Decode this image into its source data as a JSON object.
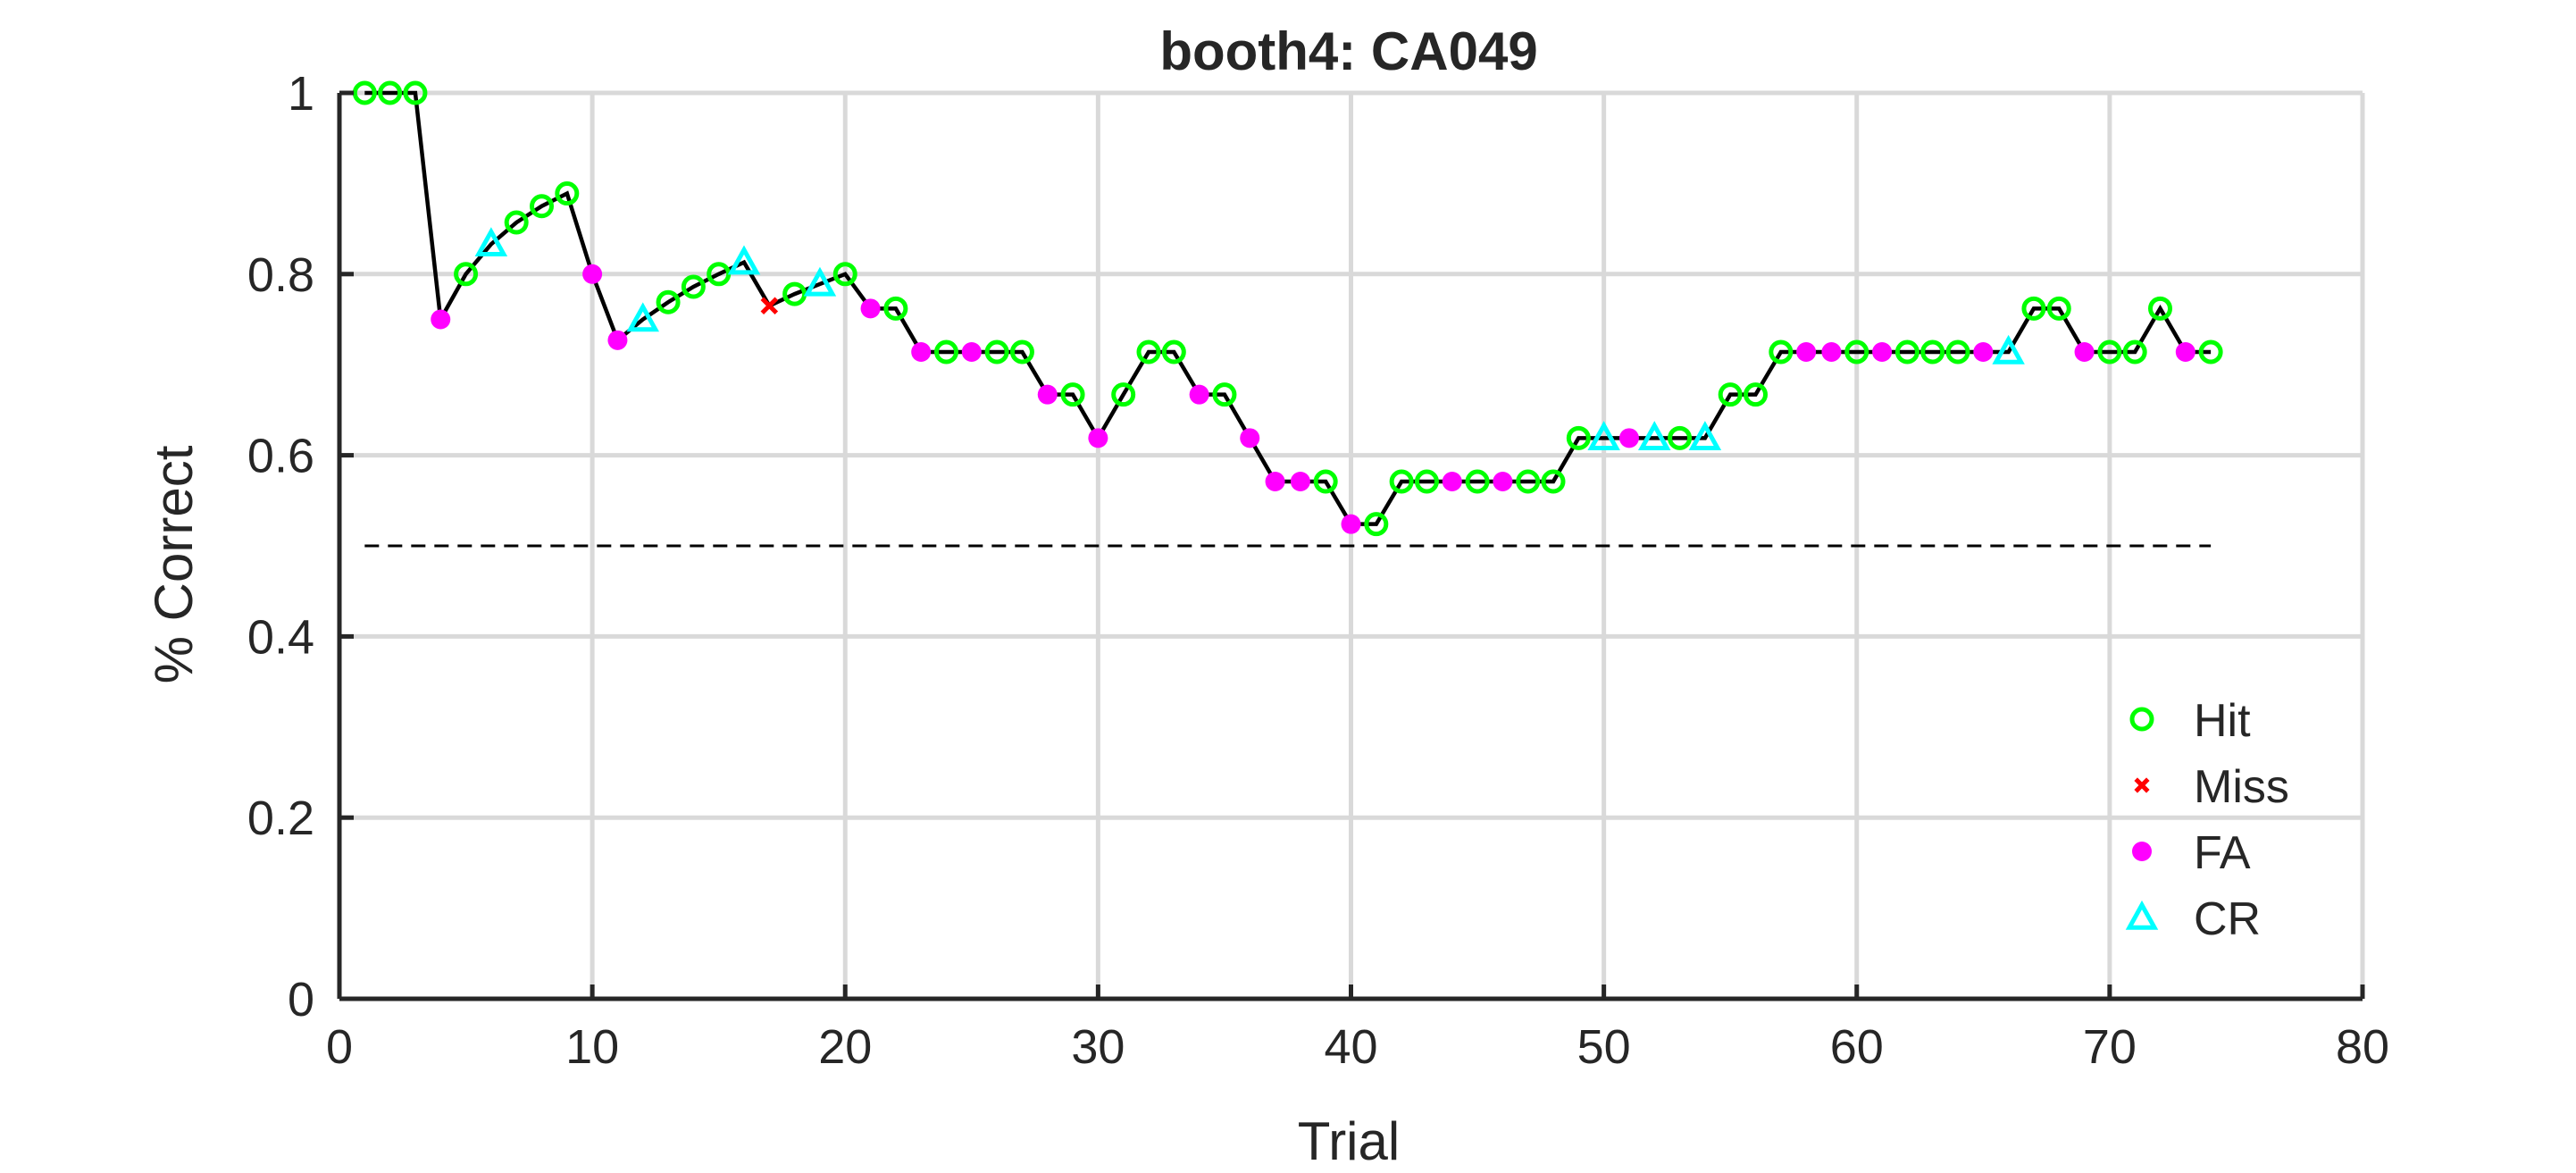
{
  "chart_data": {
    "type": "line",
    "title": "booth4: CA049",
    "xlabel": "Trial",
    "ylabel": "% Correct",
    "xlim": [
      0,
      80
    ],
    "ylim": [
      0,
      1
    ],
    "xticks": [
      0,
      10,
      20,
      30,
      40,
      50,
      60,
      70,
      80
    ],
    "yticks": [
      0,
      0.2,
      0.4,
      0.6,
      0.8,
      1
    ],
    "xtick_labels": [
      "0",
      "10",
      "20",
      "30",
      "40",
      "50",
      "60",
      "70",
      "80"
    ],
    "ytick_labels": [
      "0",
      "0.2",
      "0.4",
      "0.6",
      "0.8",
      "1"
    ],
    "grid": true,
    "legend_position": "bottom-right",
    "chance_line": {
      "y": 0.5,
      "x_range": [
        1,
        74
      ],
      "style": "dashed"
    },
    "legend": [
      {
        "key": "Hit",
        "label": "Hit",
        "color": "#00ff00",
        "marker": "circle-open"
      },
      {
        "key": "Miss",
        "label": "Miss",
        "color": "#ff0000",
        "marker": "x"
      },
      {
        "key": "FA",
        "label": "FA",
        "color": "#ff00ff",
        "marker": "dot"
      },
      {
        "key": "CR",
        "label": "CR",
        "color": "#00ffff",
        "marker": "triangle-open"
      }
    ],
    "x": [
      1,
      2,
      3,
      4,
      5,
      6,
      7,
      8,
      9,
      10,
      11,
      12,
      13,
      14,
      15,
      16,
      17,
      18,
      19,
      20,
      21,
      22,
      23,
      24,
      25,
      26,
      27,
      28,
      29,
      30,
      31,
      32,
      33,
      34,
      35,
      36,
      37,
      38,
      39,
      40,
      41,
      42,
      43,
      44,
      45,
      46,
      47,
      48,
      49,
      50,
      51,
      52,
      53,
      54,
      55,
      56,
      57,
      58,
      59,
      60,
      61,
      62,
      63,
      64,
      65,
      66,
      67,
      68,
      69,
      70,
      71,
      72,
      73,
      74
    ],
    "y": [
      1,
      1,
      1,
      0.75,
      0.8,
      0.833,
      0.857,
      0.875,
      0.889,
      0.8,
      0.727,
      0.75,
      0.769,
      0.786,
      0.8,
      0.813,
      0.765,
      0.778,
      0.789,
      0.8,
      0.762,
      0.762,
      0.714,
      0.714,
      0.714,
      0.714,
      0.714,
      0.667,
      0.667,
      0.619,
      0.667,
      0.714,
      0.714,
      0.667,
      0.667,
      0.619,
      0.571,
      0.571,
      0.571,
      0.524,
      0.524,
      0.571,
      0.571,
      0.571,
      0.571,
      0.571,
      0.571,
      0.571,
      0.619,
      0.619,
      0.619,
      0.619,
      0.619,
      0.619,
      0.667,
      0.667,
      0.714,
      0.714,
      0.714,
      0.714,
      0.714,
      0.714,
      0.714,
      0.714,
      0.714,
      0.714,
      0.762,
      0.762,
      0.714,
      0.714,
      0.714,
      0.762,
      0.714,
      0.714
    ],
    "outcomes": [
      "Hit",
      "Hit",
      "Hit",
      "FA",
      "Hit",
      "CR",
      "Hit",
      "Hit",
      "Hit",
      "FA",
      "FA",
      "CR",
      "Hit",
      "Hit",
      "Hit",
      "CR",
      "Miss",
      "Hit",
      "CR",
      "Hit",
      "FA",
      "Hit",
      "FA",
      "Hit",
      "FA",
      "Hit",
      "Hit",
      "FA",
      "Hit",
      "FA",
      "Hit",
      "Hit",
      "Hit",
      "FA",
      "Hit",
      "FA",
      "FA",
      "FA",
      "Hit",
      "FA",
      "Hit",
      "Hit",
      "Hit",
      "FA",
      "Hit",
      "FA",
      "Hit",
      "Hit",
      "Hit",
      "CR",
      "FA",
      "CR",
      "Hit",
      "CR",
      "Hit",
      "Hit",
      "Hit",
      "FA",
      "FA",
      "Hit",
      "FA",
      "Hit",
      "Hit",
      "Hit",
      "FA",
      "CR",
      "Hit",
      "Hit",
      "FA",
      "Hit",
      "Hit",
      "Hit",
      "FA",
      "Hit"
    ]
  }
}
